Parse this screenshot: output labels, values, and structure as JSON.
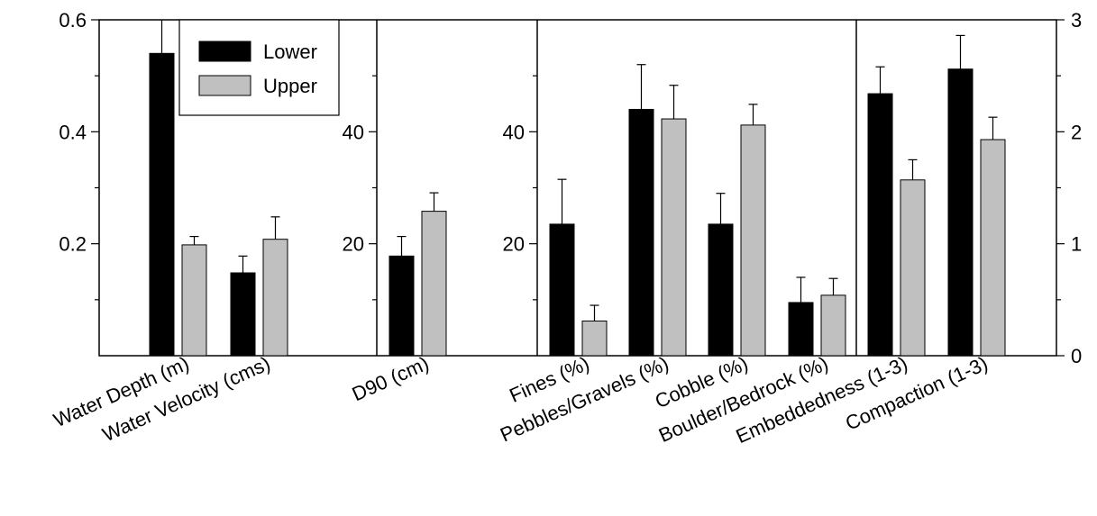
{
  "chart_data": {
    "type": "bar",
    "legend": {
      "position": "top-left",
      "items": [
        {
          "name": "Lower",
          "color": "#000000"
        },
        {
          "name": "Upper",
          "color": "#c0c0c0"
        }
      ]
    },
    "panels": [
      {
        "id": "depth-velocity",
        "axis": "left",
        "ylim": [
          0,
          0.6
        ],
        "major_ticks": [
          {
            "value": 0.2,
            "label": "0.2"
          },
          {
            "value": 0.4,
            "label": "0.4"
          },
          {
            "value": 0.6,
            "label": "0.6"
          }
        ],
        "minor_ticks": [
          0.1,
          0.3,
          0.5
        ],
        "categories": [
          "Water Depth (m)",
          "Water Velocity (cms)"
        ],
        "series": [
          {
            "name": "Lower",
            "values": [
              0.54,
              0.148
            ],
            "errors": [
              0.07,
              0.03
            ]
          },
          {
            "name": "Upper",
            "values": [
              0.198,
              0.208
            ],
            "errors": [
              0.015,
              0.04
            ]
          }
        ]
      },
      {
        "id": "d90",
        "axis": "left",
        "ylim": [
          0,
          60
        ],
        "major_ticks": [
          {
            "value": 20,
            "label": "20"
          },
          {
            "value": 40,
            "label": "40"
          }
        ],
        "minor_ticks": [
          10,
          30,
          50
        ],
        "categories": [
          "D90 (cm)"
        ],
        "series": [
          {
            "name": "Lower",
            "values": [
              17.8
            ],
            "errors": [
              3.5
            ]
          },
          {
            "name": "Upper",
            "values": [
              25.8
            ],
            "errors": [
              3.3
            ]
          }
        ]
      },
      {
        "id": "substrate",
        "axis": "left",
        "ylim": [
          0,
          60
        ],
        "major_ticks": [
          {
            "value": 20,
            "label": "20"
          },
          {
            "value": 40,
            "label": "40"
          }
        ],
        "minor_ticks": [
          10,
          30,
          50
        ],
        "categories": [
          "Fines (%)",
          "Pebbles/Gravels (%)",
          "Cobble (%)",
          "Boulder/Bedrock (%)"
        ],
        "series": [
          {
            "name": "Lower",
            "values": [
              23.5,
              44,
              23.5,
              9.5
            ],
            "errors": [
              8,
              8,
              5.5,
              4.5
            ]
          },
          {
            "name": "Upper",
            "values": [
              6.2,
              42.3,
              41.2,
              10.8
            ],
            "errors": [
              2.8,
              6,
              3.7,
              3
            ]
          }
        ]
      },
      {
        "id": "embed-compaction",
        "axis": "right",
        "ylim": [
          0,
          3
        ],
        "major_ticks": [
          {
            "value": 0,
            "label": "0"
          },
          {
            "value": 1,
            "label": "1"
          },
          {
            "value": 2,
            "label": "2"
          },
          {
            "value": 3,
            "label": "3"
          }
        ],
        "minor_ticks": [
          0.5,
          1.5,
          2.5
        ],
        "categories": [
          "Embeddedness (1-3)",
          "Compaction (1-3)"
        ],
        "series": [
          {
            "name": "Lower",
            "values": [
              2.34,
              2.56
            ],
            "errors": [
              0.24,
              0.3
            ]
          },
          {
            "name": "Upper",
            "values": [
              1.57,
              1.93
            ],
            "errors": [
              0.18,
              0.2
            ]
          }
        ]
      }
    ]
  }
}
